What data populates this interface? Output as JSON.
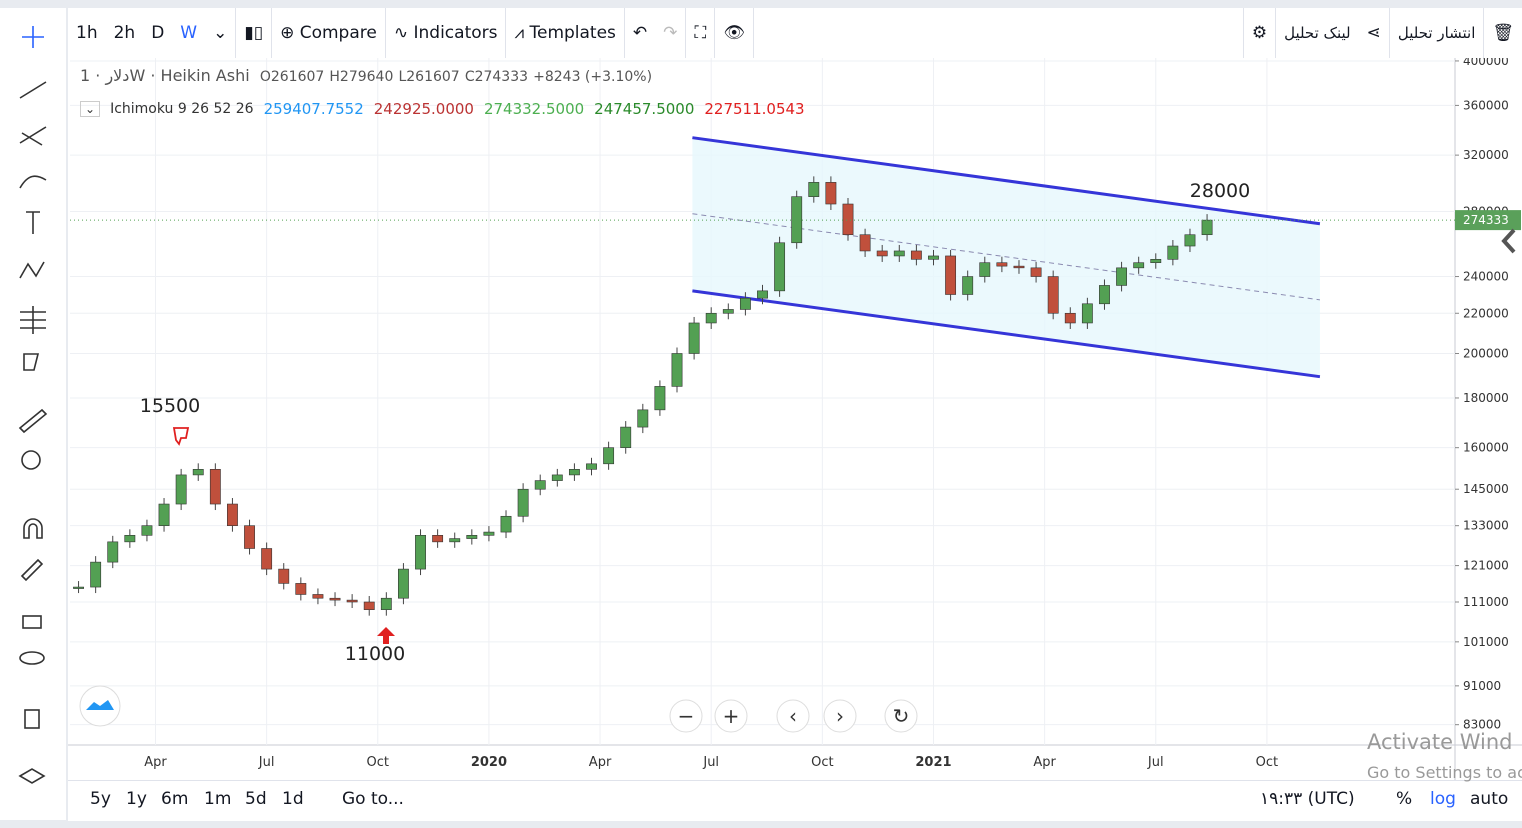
{
  "toolbar": {
    "intervals": [
      "1h",
      "2h",
      "D",
      "W"
    ],
    "buttons": [
      "Compare",
      "Indicators",
      "Templates"
    ],
    "share": "لینک تحلیل",
    "publish": "انتشار تحلیل"
  },
  "legend": {
    "symbol": "دلار",
    "interval": "1W",
    "style": "Heikin Ashi",
    "ohlc": [
      "O261607",
      "H279640",
      "L261607",
      "C274333"
    ],
    "change": "+8243 (+3.10%)",
    "indicator": "Ichimoku 9 26 52 26",
    "indicator_values": [
      "259407.7552",
      "242925.0000",
      "274332.5000",
      "247457.5000",
      "227511.0543"
    ]
  },
  "chart_data": {
    "type": "candlestick",
    "log_scale": true,
    "x": [
      4,
      6,
      8,
      10,
      12,
      14,
      16,
      18,
      20,
      22,
      24,
      26,
      28,
      30,
      32,
      34,
      36,
      38,
      40,
      42,
      44,
      46,
      48,
      50,
      52,
      54,
      56,
      58,
      60,
      62,
      64,
      66,
      68,
      70,
      72,
      74,
      76,
      78,
      80,
      82,
      84,
      86,
      88,
      90,
      92,
      94,
      96,
      98,
      100,
      102,
      104,
      106,
      108,
      110,
      112,
      114,
      116,
      118,
      120,
      122,
      124,
      126,
      128,
      130,
      132,
      134,
      136
    ],
    "values": [
      115000,
      122000,
      128000,
      130000,
      133000,
      140000,
      150000,
      152000,
      140000,
      133000,
      126000,
      120000,
      116000,
      113000,
      112000,
      111500,
      111000,
      109000,
      112000,
      120000,
      130000,
      128000,
      129000,
      130000,
      131000,
      136000,
      145000,
      148000,
      150000,
      152000,
      154000,
      160000,
      168000,
      175000,
      185000,
      200000,
      215000,
      220000,
      222000,
      228000,
      232000,
      260000,
      290000,
      300000,
      285000,
      265000,
      255000,
      252000,
      255000,
      250000,
      252000,
      230000,
      240000,
      248000,
      246000,
      245000,
      240000,
      220000,
      215000,
      225000,
      235000,
      245000,
      248000,
      250000,
      258000,
      265000,
      274333
    ],
    "up_color": "#53a053",
    "down_color": "#c0503c",
    "channel": [
      {
        "name": "upper",
        "color": "#3535d8",
        "x": [
          75.8,
          149.2
        ],
        "values": [
          333500,
          272000
        ]
      },
      {
        "name": "middle",
        "color": "#8a8ab0",
        "x": [
          75.8,
          149.2
        ],
        "values": [
          278500,
          227100
        ]
      },
      {
        "name": "lower",
        "color": "#3535d8",
        "x": [
          75.8,
          149.2
        ],
        "values": [
          232000,
          189300
        ]
      }
    ],
    "last_price": 274333,
    "annotations": [
      "15500",
      "11000",
      "28000"
    ],
    "xlim": [
      3,
      165
    ],
    "xticks": [
      {
        "value": 13,
        "label": "Apr"
      },
      {
        "value": 26,
        "label": "Jul"
      },
      {
        "value": 39,
        "label": "Oct"
      },
      {
        "value": 52,
        "label": "2020"
      },
      {
        "value": 65,
        "label": "Apr"
      },
      {
        "value": 78,
        "label": "Jul"
      },
      {
        "value": 91,
        "label": "Oct"
      },
      {
        "value": 104,
        "label": "2021"
      },
      {
        "value": 117,
        "label": "Apr"
      },
      {
        "value": 130,
        "label": "Jul"
      },
      {
        "value": 143,
        "label": "Oct"
      }
    ],
    "ylim": [
      79100,
      402800
    ],
    "yticks": [
      83000,
      91000,
      101000,
      111000,
      121000,
      133000,
      145000,
      160000,
      180000,
      200000,
      220000,
      240000,
      280000,
      320000,
      360000,
      400000
    ],
    "grid": true
  },
  "bottom_bar": {
    "ranges": [
      "5y",
      "1y",
      "6m",
      "1m",
      "5d",
      "1d"
    ],
    "goto": "Go to...",
    "time": "۱۹:۳۳ (UTC)",
    "options": [
      "%",
      "log",
      "auto"
    ]
  },
  "watermark": [
    "Activate Wind",
    "Go to Settings to ac"
  ]
}
